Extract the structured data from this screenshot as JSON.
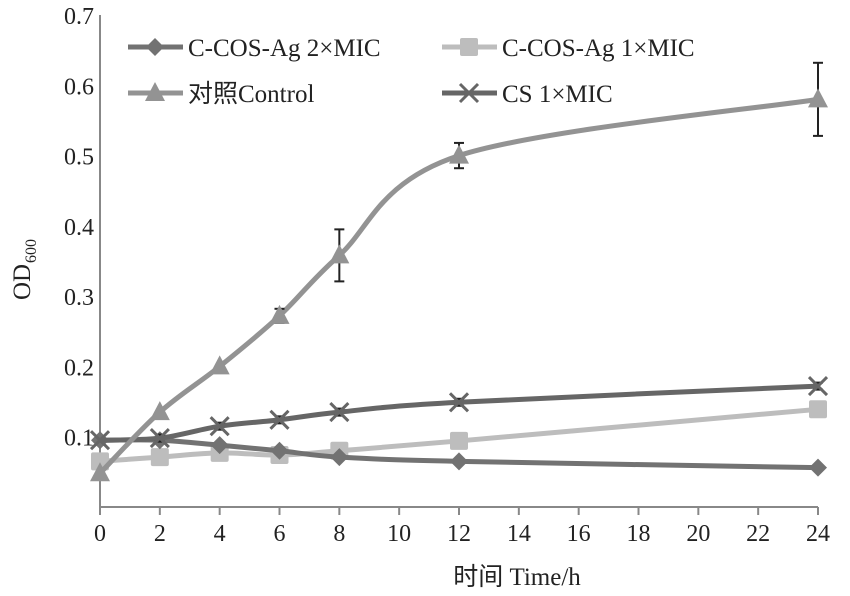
{
  "chart_data": {
    "type": "line",
    "title": "",
    "xlabel": "时间  Time/h",
    "ylabel_main": "OD",
    "ylabel_sub": "600",
    "xlim": [
      0,
      24
    ],
    "ylim": [
      0,
      0.7
    ],
    "xticks": [
      0,
      2,
      4,
      6,
      8,
      10,
      12,
      14,
      16,
      18,
      20,
      22,
      24
    ],
    "yticks": [
      0.1,
      0.2,
      0.3,
      0.4,
      0.5,
      0.6,
      0.7
    ],
    "ytick_labels": [
      "0.1",
      "0.2",
      "0.3",
      "0.4",
      "0.5",
      "0.6",
      "0.7"
    ],
    "grid": false,
    "legend_position": "top",
    "x": [
      0,
      2,
      4,
      6,
      8,
      12,
      24
    ],
    "series": [
      {
        "name": "C-COS-Ag 2×MIC",
        "marker": "diamond",
        "color": "#727272",
        "values": [
          0.095,
          0.095,
          0.088,
          0.08,
          0.071,
          0.065,
          0.056
        ],
        "errors": [
          0,
          0,
          0,
          0,
          0,
          0,
          0
        ]
      },
      {
        "name": "C-COS-Ag 1×MIC",
        "marker": "square",
        "color": "#bdbdbd",
        "values": [
          0.065,
          0.071,
          0.077,
          0.074,
          0.08,
          0.094,
          0.139
        ],
        "errors": [
          0,
          0,
          0,
          0,
          0,
          0,
          0
        ]
      },
      {
        "name": "对照Control",
        "marker": "triangle",
        "color": "#939393",
        "values": [
          0.048,
          0.135,
          0.2,
          0.272,
          0.358,
          0.5,
          0.58
        ],
        "errors": [
          0,
          0,
          0,
          0.01,
          0.037,
          0.018,
          0.052
        ]
      },
      {
        "name": "CS 1×MIC",
        "marker": "x",
        "color": "#666666",
        "values": [
          0.095,
          0.098,
          0.115,
          0.124,
          0.135,
          0.149,
          0.172
        ],
        "errors": [
          0,
          0.005,
          0.005,
          0.005,
          0.005,
          0.005,
          0.005
        ]
      }
    ]
  }
}
